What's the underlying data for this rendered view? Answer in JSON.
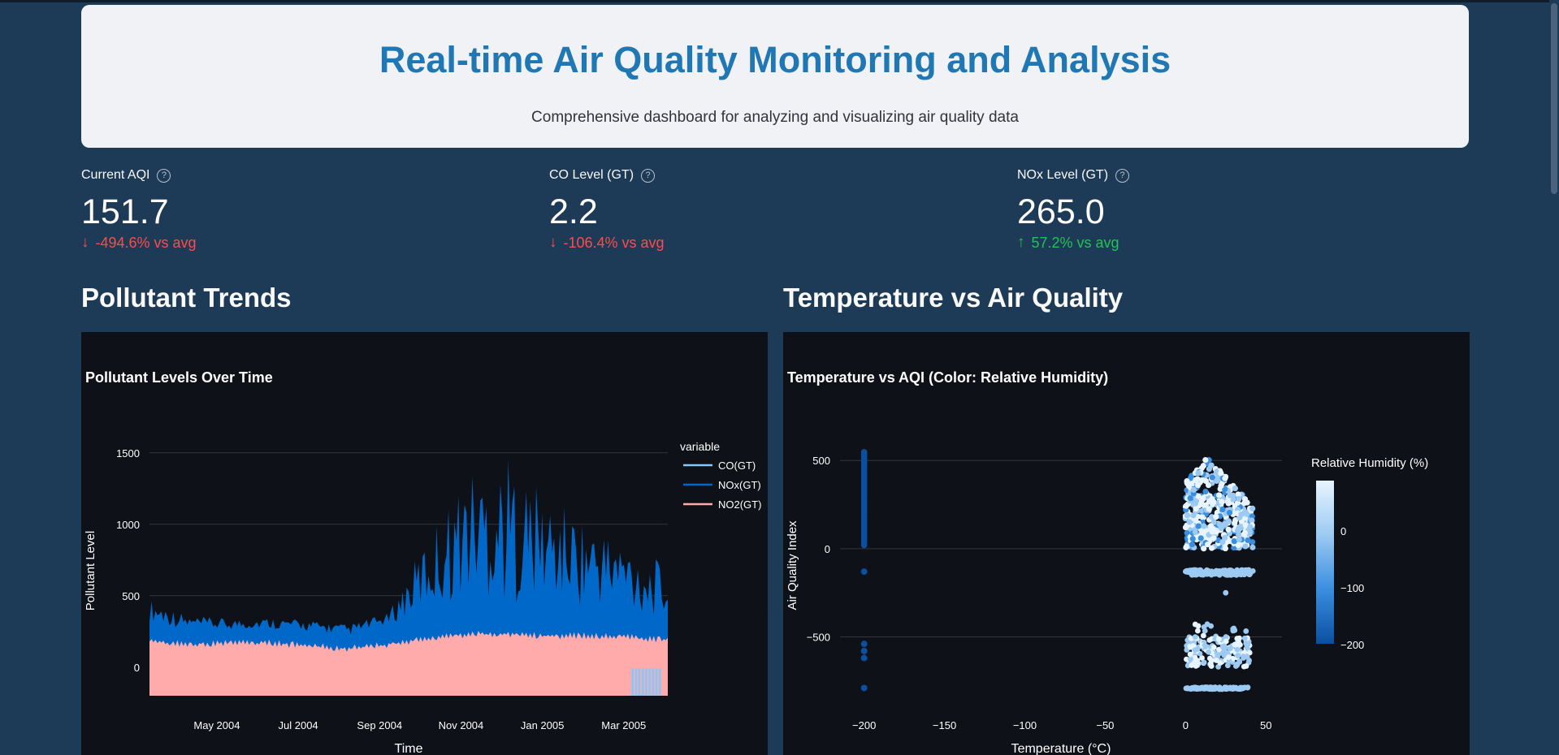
{
  "header": {
    "title": "Real-time Air Quality Monitoring and Analysis",
    "subtitle": "Comprehensive dashboard for analyzing and visualizing air quality data"
  },
  "metrics": [
    {
      "label": "Current AQI",
      "value": "151.7",
      "delta": "-494.6% vs avg",
      "direction": "down"
    },
    {
      "label": "CO Level (GT)",
      "value": "2.2",
      "delta": "-106.4% vs avg",
      "direction": "down"
    },
    {
      "label": "NOx Level (GT)",
      "value": "265.0",
      "delta": "57.2% vs avg",
      "direction": "up"
    }
  ],
  "icons": {
    "help": "question-circle-icon",
    "down": "arrow-down-icon",
    "up": "arrow-up-icon"
  },
  "sections": {
    "trends": "Pollutant Trends",
    "scatter": "Temperature vs Air Quality"
  },
  "colors": {
    "up": "#21c354",
    "down": "#ff4b4b",
    "title": "#1f77b4",
    "co": "#83c9ff",
    "nox": "#0068c9",
    "no2": "#ffabab"
  },
  "chart_data": [
    {
      "type": "area",
      "title": "Pollutant Levels Over Time",
      "xlabel": "Time",
      "ylabel": "Pollutant Level",
      "x_ticks": [
        "May 2004",
        "Jul 2004",
        "Sep 2004",
        "Nov 2004",
        "Jan 2005",
        "Mar 2005"
      ],
      "y_ticks": [
        "1500",
        "1000",
        "500",
        "0"
      ],
      "ylim": [
        -200,
        1550
      ],
      "legend_title": "variable",
      "legend_position": "top-right",
      "series": [
        {
          "name": "CO(GT)",
          "color": "#83c9ff"
        },
        {
          "name": "NOx(GT)",
          "color": "#0068c9"
        },
        {
          "name": "NO2(GT)",
          "color": "#ffabab"
        }
      ],
      "x": [
        "2004-03",
        "2004-04",
        "2004-05",
        "2004-06",
        "2004-07",
        "2004-08",
        "2004-09",
        "2004-10",
        "2004-11",
        "2004-12",
        "2005-01",
        "2005-02",
        "2005-03",
        "2005-04"
      ],
      "nox_peak": [
        480,
        360,
        340,
        350,
        330,
        300,
        380,
        950,
        1400,
        1480,
        1200,
        1050,
        900,
        700
      ],
      "nox_base": [
        320,
        260,
        260,
        270,
        250,
        220,
        300,
        400,
        500,
        450,
        450,
        420,
        380,
        330
      ],
      "no2_level": [
        180,
        160,
        170,
        170,
        150,
        130,
        160,
        200,
        230,
        230,
        220,
        220,
        210,
        190
      ]
    },
    {
      "type": "scatter",
      "title": "Temperature vs AQI (Color: Relative Humidity)",
      "xlabel": "Temperature (°C)",
      "ylabel": "Air Quality Index",
      "x_ticks": [
        "−200",
        "−150",
        "−100",
        "−50",
        "0",
        "50"
      ],
      "y_ticks": [
        "500",
        "0",
        "−500"
      ],
      "xlim": [
        -215,
        60
      ],
      "ylim": [
        -820,
        630
      ],
      "colorbar_title": "Relative Humidity (%)",
      "colorbar_ticks": [
        "0",
        "−100",
        "−200"
      ],
      "colorscale": [
        "#0a4fa0",
        "#3a8ee0",
        "#9ccaf2",
        "#e8f4ff"
      ]
    }
  ]
}
